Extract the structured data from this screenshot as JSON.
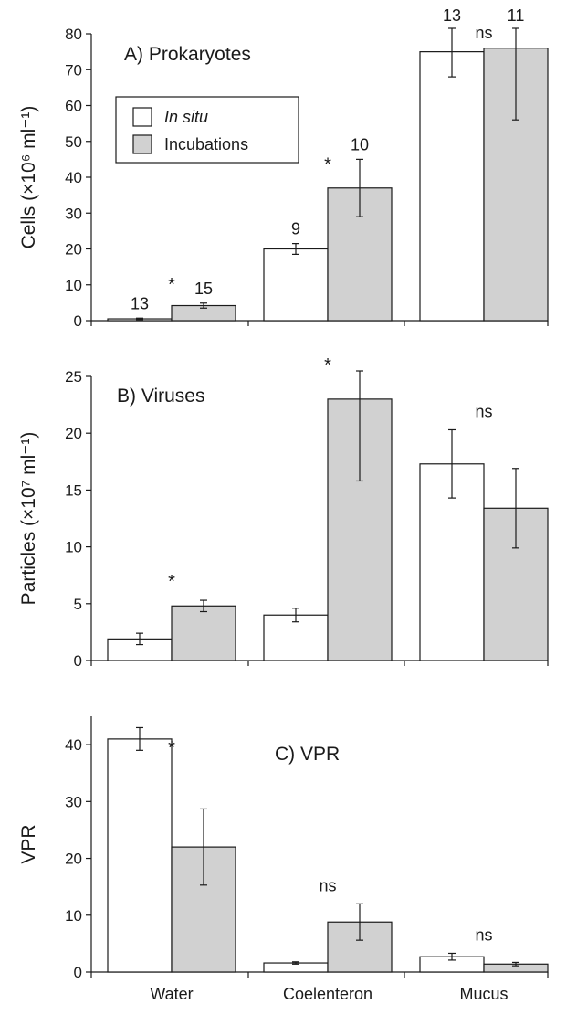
{
  "chart_data": [
    {
      "type": "bar",
      "title": "A) Prokaryotes",
      "ylabel": "Cells (×10⁶ ml⁻¹)",
      "ylim": [
        0,
        80
      ],
      "yticks": [
        0,
        10,
        20,
        30,
        40,
        50,
        60,
        70,
        80
      ],
      "categories": [
        "Water",
        "Coelenteron",
        "Mucus"
      ],
      "legend": {
        "position": "top-left",
        "entries": [
          "In situ",
          "Incubations"
        ]
      },
      "series": [
        {
          "name": "In situ",
          "color": "#ffffff",
          "values": [
            0.5,
            20,
            75
          ],
          "errors": [
            0.2,
            1.5,
            7
          ],
          "n": [
            "13",
            "9",
            "13"
          ]
        },
        {
          "name": "Incubations",
          "color": "#d1d1d1",
          "values": [
            4.2,
            37,
            76
          ],
          "errors": [
            0.7,
            8,
            20
          ],
          "n": [
            "15",
            "10",
            "11"
          ]
        }
      ],
      "significance": [
        "*",
        "*",
        "ns"
      ]
    },
    {
      "type": "bar",
      "title": "B) Viruses",
      "ylabel": "Particles (×10⁷ ml⁻¹)",
      "ylim": [
        0,
        25
      ],
      "yticks": [
        0,
        5,
        10,
        15,
        20,
        25
      ],
      "categories": [
        "Water",
        "Coelenteron",
        "Mucus"
      ],
      "series": [
        {
          "name": "In situ",
          "color": "#ffffff",
          "values": [
            1.9,
            4.0,
            17.3
          ],
          "errors": [
            0.5,
            0.6,
            3.0
          ]
        },
        {
          "name": "Incubations",
          "color": "#d1d1d1",
          "values": [
            4.8,
            23,
            13.4
          ],
          "errors": [
            0.5,
            7.2,
            3.5
          ]
        }
      ],
      "significance": [
        "*",
        "*",
        "ns"
      ]
    },
    {
      "type": "bar",
      "title": "C) VPR",
      "ylabel": "VPR",
      "ylim": [
        0,
        45
      ],
      "yticks": [
        0,
        10,
        20,
        30,
        40
      ],
      "categories": [
        "Water",
        "Coelenteron",
        "Mucus"
      ],
      "series": [
        {
          "name": "In situ",
          "color": "#ffffff",
          "values": [
            41,
            1.6,
            2.7
          ],
          "errors": [
            2,
            0.2,
            0.6
          ]
        },
        {
          "name": "Incubations",
          "color": "#d1d1d1",
          "values": [
            22,
            8.8,
            1.4
          ],
          "errors": [
            6.7,
            3.2,
            0.3
          ]
        }
      ],
      "significance": [
        "*",
        "ns",
        "ns"
      ]
    }
  ]
}
